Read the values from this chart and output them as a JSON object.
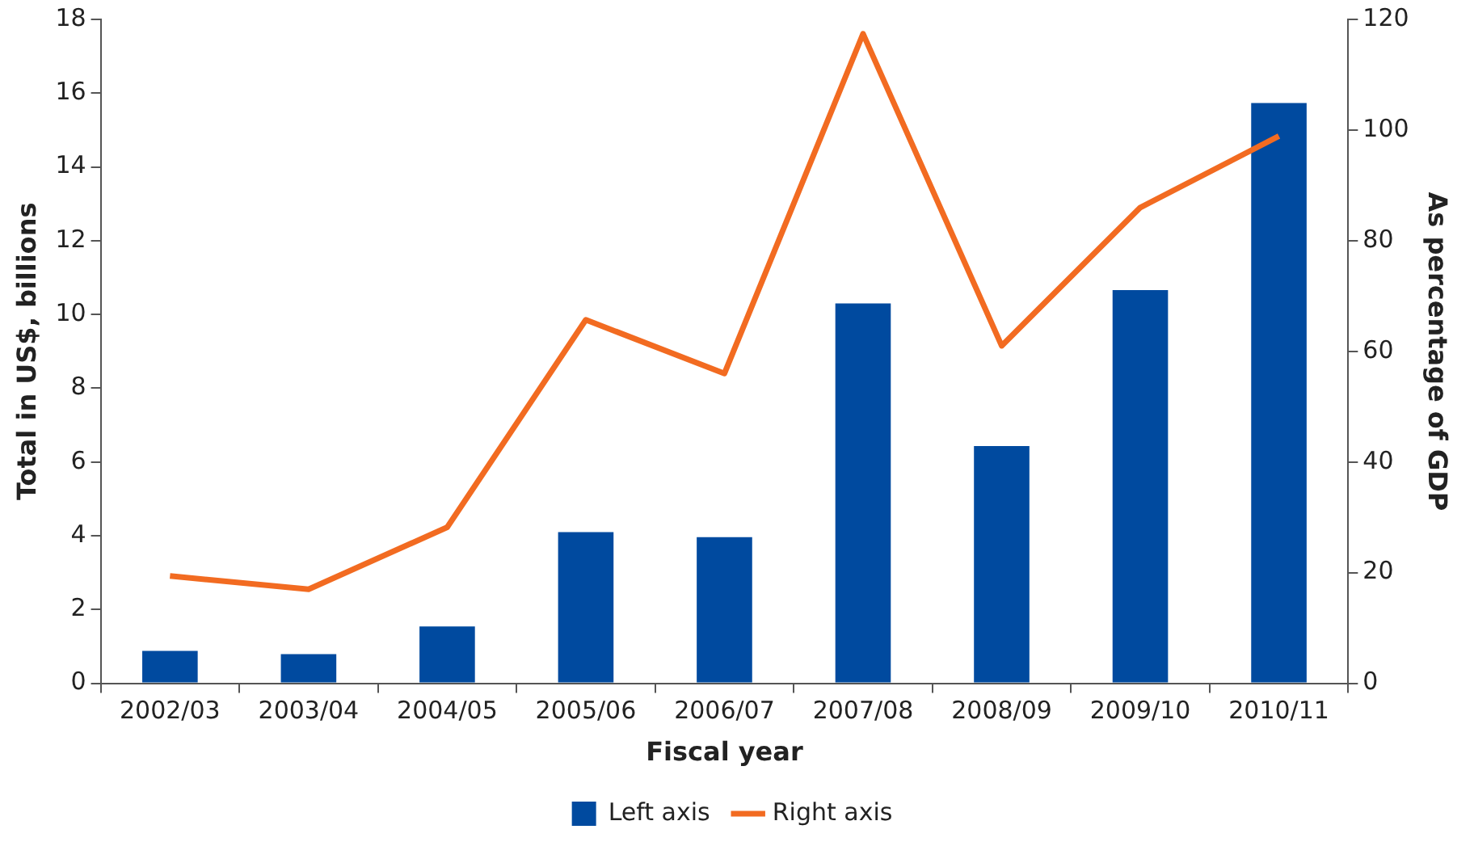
{
  "chart_data": {
    "type": "bar",
    "xlabel": "Fiscal year",
    "ylabel": "Total in US$, billions",
    "y2label": "As percentage of GDP",
    "categories": [
      "2002/03",
      "2003/04",
      "2004/05",
      "2005/06",
      "2006/07",
      "2007/08",
      "2008/09",
      "2009/10",
      "2010/11"
    ],
    "series": [
      {
        "name": "Left axis",
        "color": "#004a9f",
        "values": [
          0.88,
          0.79,
          1.54,
          4.1,
          3.96,
          10.3,
          6.43,
          10.66,
          15.73
        ]
      },
      {
        "name": "Right axis",
        "type": "line",
        "axis": "y2",
        "color": "#f26b21",
        "marker": "none",
        "line_style": "solid",
        "values": [
          19.4,
          17.0,
          28.2,
          65.7,
          56.0,
          117.4,
          61.0,
          86,
          98.9
        ]
      }
    ],
    "ylim": [
      0,
      18
    ],
    "yticks": [
      0,
      2,
      4,
      6,
      8,
      10,
      12,
      14,
      16,
      18
    ],
    "y2lim": [
      0,
      120
    ],
    "y2ticks": [
      0,
      20,
      40,
      60,
      80,
      100,
      120
    ],
    "grid": false,
    "legend": "bottom"
  }
}
